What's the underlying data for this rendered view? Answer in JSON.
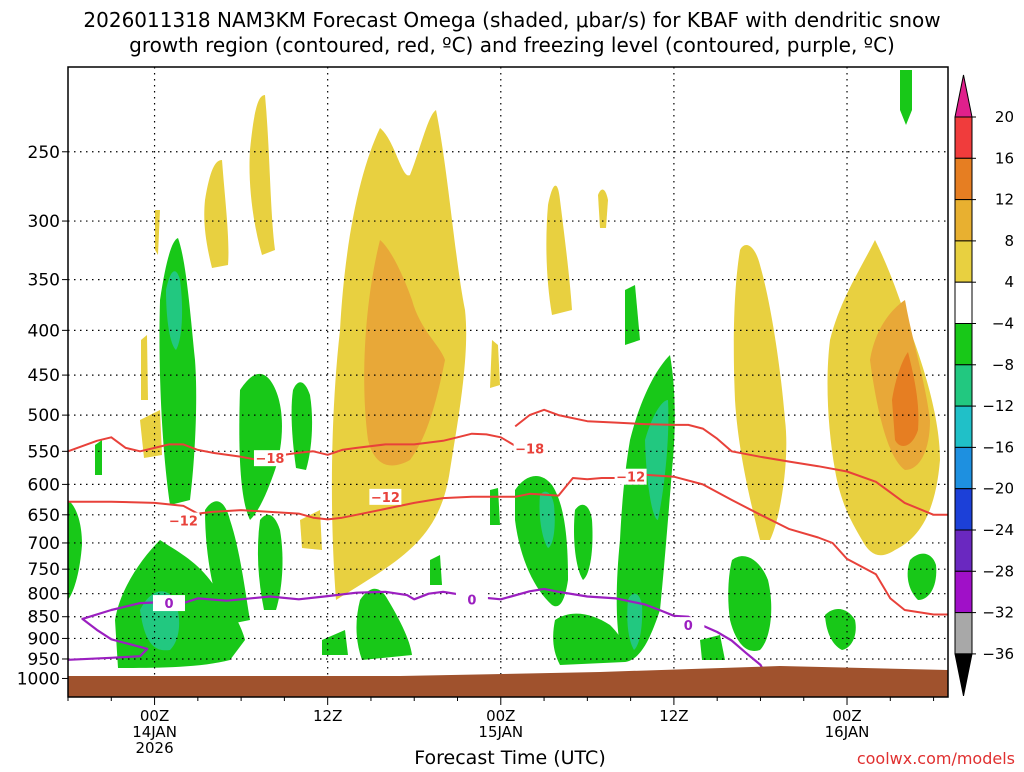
{
  "colors": {
    "dgz": "#e8413a",
    "freezing": "#9b1fc0",
    "ground": "#a0522d",
    "grid": "#000000"
  },
  "chart_data": {
    "type": "heatmap",
    "title_line1": "2026011318 NAM3KM Forecast Omega (shaded, μbar/s) for KBAF with dendritic snow",
    "title_line2": "growth region (contoured, red, ºC) and freezing level (contoured, purple, ºC)",
    "xlabel": "Forecast Time (UTC)",
    "credit": "coolwx.com/models",
    "y_axis": {
      "unit": "hPa",
      "range": [
        200,
        1050
      ],
      "ticks": [
        250,
        300,
        350,
        400,
        450,
        500,
        550,
        600,
        650,
        700,
        750,
        800,
        850,
        900,
        950,
        1000
      ],
      "labels": [
        "250",
        "300",
        "350",
        "400",
        "450",
        "500",
        "550",
        "600",
        "650",
        "700",
        "750",
        "800",
        "850",
        "900",
        "950",
        "1000"
      ]
    },
    "x_axis": {
      "unit": "forecast hour",
      "range": [
        -6,
        55
      ],
      "grid_hours": [
        0,
        12,
        24,
        36,
        48
      ],
      "ticks": [
        {
          "hour": 0,
          "lines": [
            "00Z",
            "14JAN",
            "2026"
          ]
        },
        {
          "hour": 12,
          "lines": [
            "12Z"
          ]
        },
        {
          "hour": 24,
          "lines": [
            "00Z",
            "15JAN"
          ]
        },
        {
          "hour": 36,
          "lines": [
            "12Z"
          ]
        },
        {
          "hour": 48,
          "lines": [
            "00Z",
            "16JAN"
          ]
        }
      ]
    },
    "colorbar": {
      "levels": [
        "20",
        "16",
        "12",
        "8",
        "4",
        "−4",
        "−8",
        "−12",
        "−16",
        "−20",
        "−24",
        "−28",
        "−32",
        "−36"
      ],
      "colors": [
        "#f03c3c",
        "#e67e22",
        "#e8b030",
        "#e8d040",
        "#ffffff",
        "#18c818",
        "#22c880",
        "#20c0c8",
        "#1e90e0",
        "#1c40d8",
        "#6a28c0",
        "#a010c8",
        "#a8a8a8"
      ],
      "top_color": "#e0208c",
      "bottom_color": "#000000"
    },
    "dgz_contours": [
      {
        "level": -18,
        "label": "−18",
        "label_points": [
          [
            8,
            560
          ],
          [
            26,
            546
          ]
        ],
        "points": [
          [
            -6,
            550
          ],
          [
            -4,
            535
          ],
          [
            -3,
            530
          ],
          [
            -2,
            545
          ],
          [
            -1,
            550
          ],
          [
            0,
            545
          ],
          [
            1,
            540
          ],
          [
            2,
            540
          ],
          [
            3,
            548
          ],
          [
            4,
            552
          ],
          [
            5,
            555
          ],
          [
            6,
            558
          ],
          [
            7,
            562
          ],
          [
            8,
            560
          ],
          [
            9,
            555
          ],
          [
            10,
            552
          ],
          [
            11,
            550
          ],
          [
            12,
            555
          ],
          [
            13,
            548
          ],
          [
            14,
            545
          ],
          [
            16,
            540
          ],
          [
            18,
            540
          ],
          [
            20,
            535
          ],
          [
            21,
            530
          ],
          [
            22,
            525
          ],
          [
            23,
            526
          ],
          [
            24,
            530
          ],
          [
            25,
            542
          ]
        ]
      },
      {
        "level": -18,
        "label": "",
        "points": [
          [
            25,
            515
          ],
          [
            26,
            500
          ],
          [
            27,
            493
          ],
          [
            28,
            500
          ],
          [
            30,
            508
          ],
          [
            32,
            510
          ],
          [
            34,
            512
          ],
          [
            36,
            513
          ],
          [
            37,
            513
          ],
          [
            38,
            518
          ],
          [
            39,
            532
          ],
          [
            40,
            550
          ],
          [
            42,
            558
          ],
          [
            44,
            565
          ],
          [
            46,
            572
          ],
          [
            48,
            580
          ],
          [
            50,
            596
          ],
          [
            52,
            630
          ],
          [
            54,
            650
          ],
          [
            55,
            650
          ]
        ]
      },
      {
        "level": -12,
        "label": "−12",
        "label_points": [
          [
            2,
            660
          ],
          [
            16,
            620
          ],
          [
            33,
            588
          ]
        ],
        "points": [
          [
            -6,
            628
          ],
          [
            -3,
            628
          ],
          [
            0,
            630
          ],
          [
            2,
            635
          ],
          [
            3,
            648
          ],
          [
            4,
            645
          ],
          [
            6,
            642
          ],
          [
            8,
            645
          ],
          [
            10,
            648
          ],
          [
            11,
            655
          ],
          [
            12,
            658
          ],
          [
            13,
            655
          ],
          [
            14,
            650
          ],
          [
            16,
            640
          ],
          [
            18,
            630
          ],
          [
            20,
            622
          ],
          [
            22,
            620
          ],
          [
            24,
            620
          ],
          [
            25,
            620
          ],
          [
            26,
            615
          ],
          [
            28,
            618
          ],
          [
            29,
            590
          ],
          [
            30,
            592
          ],
          [
            31,
            590
          ],
          [
            32,
            590
          ],
          [
            34,
            585
          ],
          [
            36,
            588
          ],
          [
            38,
            600
          ],
          [
            40,
            625
          ],
          [
            42,
            650
          ],
          [
            44,
            675
          ],
          [
            46,
            690
          ],
          [
            47,
            700
          ],
          [
            48,
            730
          ],
          [
            50,
            760
          ],
          [
            51,
            810
          ],
          [
            52,
            835
          ],
          [
            54,
            845
          ],
          [
            55,
            845
          ]
        ]
      }
    ],
    "freezing_contours": [
      {
        "level": 0,
        "label": "0",
        "label_points": [
          [
            1,
            820
          ],
          [
            22,
            812
          ],
          [
            37,
            869
          ]
        ],
        "points": [
          [
            -6,
            952
          ],
          [
            -3,
            947
          ],
          [
            -1,
            943
          ],
          [
            -0.5,
            925
          ],
          [
            -3,
            902
          ],
          [
            -4,
            880
          ],
          [
            -5,
            855
          ],
          [
            -3,
            835
          ],
          [
            -1,
            820
          ],
          [
            0.5,
            818
          ],
          [
            1,
            830
          ],
          [
            2,
            820
          ],
          [
            3,
            810
          ],
          [
            5,
            815
          ],
          [
            8,
            806
          ],
          [
            10,
            812
          ],
          [
            12,
            805
          ],
          [
            14,
            798
          ],
          [
            16,
            796
          ],
          [
            17.5,
            803
          ],
          [
            18,
            812
          ],
          [
            19,
            800
          ],
          [
            20,
            796
          ],
          [
            22,
            806
          ],
          [
            24,
            812
          ],
          [
            26,
            795
          ],
          [
            27,
            790
          ],
          [
            28,
            796
          ],
          [
            30,
            806
          ],
          [
            32,
            810
          ],
          [
            34,
            823
          ],
          [
            35,
            835
          ],
          [
            36,
            848
          ],
          [
            37,
            850
          ],
          [
            38,
            870
          ],
          [
            39,
            885
          ],
          [
            40,
            905
          ],
          [
            41,
            935
          ],
          [
            42,
            965
          ],
          [
            42.5,
            1000
          ]
        ]
      }
    ]
  }
}
